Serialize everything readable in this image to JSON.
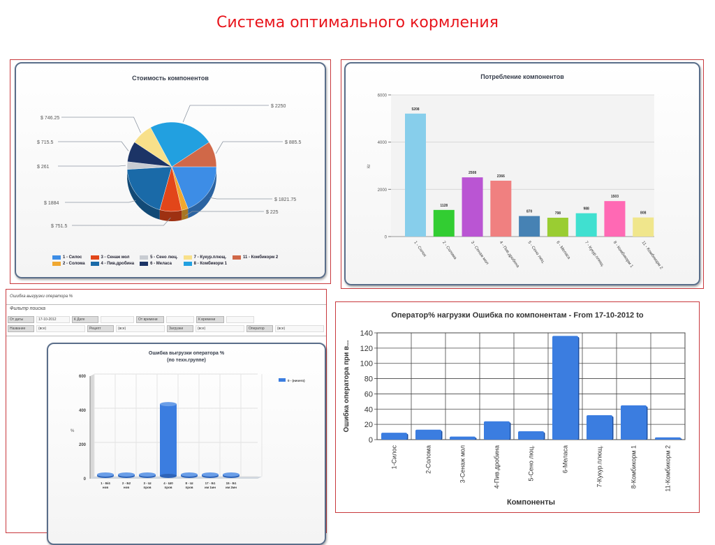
{
  "slide": {
    "title": "Система оптимального кормления"
  },
  "colors": {
    "title_red": "#e8141b",
    "frame_red": "#c8383c",
    "bar_blue": "#3b7de0"
  },
  "chart_data": [
    {
      "id": "cost",
      "type": "pie",
      "title": "Стоимость компонентов",
      "categories": [
        "1 - Силос",
        "2 - Солома",
        "3 - Сенаж мол",
        "4 - Пив.дробина",
        "5 - Сено люц.",
        "6 - Меласа",
        "7 - Кукур.плющ.",
        "8 - Комбикорм 1",
        "11 - Комбикорм 2"
      ],
      "values": [
        1821.75,
        225,
        751.5,
        1884,
        261,
        715.5,
        746.25,
        2250,
        885.5
      ],
      "labels": [
        "$ 1821.75",
        "$ 225",
        "$ 751.5",
        "$ 1884",
        "$ 261",
        "$ 715.5",
        "$ 746.25",
        "$ 2250",
        "$ 885.5"
      ],
      "colors": [
        "#3d8de6",
        "#f0a830",
        "#e2461a",
        "#1a6aa8",
        "#c8ccd2",
        "#1c3466",
        "#f8e08a",
        "#22a0e0",
        "#d06848"
      ],
      "legend_position": "bottom",
      "legend": [
        {
          "label": "1 - Силос",
          "color": "#3d8de6"
        },
        {
          "label": "3 - Сенаж мол",
          "color": "#e2461a"
        },
        {
          "label": "5 - Сено люц.",
          "color": "#c8ccd2"
        },
        {
          "label": "7 - Кукур.плющ.",
          "color": "#f8e08a"
        },
        {
          "label": "11 - Комбикорм 2",
          "color": "#d06848"
        },
        {
          "label": "2 - Солома",
          "color": "#f0a830"
        },
        {
          "label": "4 - Пив.дробина",
          "color": "#1a6aa8"
        },
        {
          "label": "6 - Меласа",
          "color": "#1c3466"
        },
        {
          "label": "8 - Комбикорм 1",
          "color": "#22a0e0"
        }
      ]
    },
    {
      "id": "consumption",
      "type": "bar",
      "title": "Потребление компонентов",
      "categories": [
        "1 - Силос",
        "2 - Солома",
        "3 - Сенаж мол",
        "4 - Пив.дробина",
        "5 - Сено люц.",
        "6 - Меласа",
        "7 - Кукур.плющ.",
        "8 - Комбикорм 1",
        "11 - Комбикорм 2"
      ],
      "values": [
        5208,
        1128,
        2508,
        2366,
        870,
        798,
        988,
        1503,
        808
      ],
      "value_labels": [
        "5208",
        "1128",
        "2508",
        "2366",
        "870",
        "798",
        "988",
        "1503",
        "808"
      ],
      "colors": [
        "#87ceeb",
        "#32cd32",
        "#ba55d3",
        "#f08080",
        "#4682b4",
        "#9acd32",
        "#40e0d0",
        "#ff69b4",
        "#f0e68c"
      ],
      "xlabel": "",
      "ylabel": "Кг",
      "ylim": [
        0,
        6000
      ],
      "yticks": [
        "0",
        "2000",
        "4000",
        "6000"
      ],
      "grid": true
    },
    {
      "id": "operator_error_group",
      "type": "bar",
      "title": "Ошибка выгрузки оператора %",
      "subtitle": "(по техн.группе)",
      "categories": [
        "1 - Б/4 нов",
        "2 - Б2 нов",
        "3 - Ш пров",
        "4 - Ш0 пров",
        "8 - Ш пров",
        "17 - Б1 им 1мн",
        "15 - Б1 им 2мн"
      ],
      "values": [
        5,
        3,
        5,
        420,
        2,
        1,
        8
      ],
      "series": [
        {
          "name": "0 - (ничего)",
          "color": "#3b7de0"
        }
      ],
      "ylabel": "%",
      "ylim": [
        0,
        600
      ],
      "yticks": [
        "0",
        "200",
        "400",
        "600"
      ],
      "legend_position": "right",
      "grid": true
    },
    {
      "id": "operator_error_component",
      "type": "bar",
      "title": "Оператор% нагрузки Ошибка по компонентам - From 17-10-2012 to",
      "categories": [
        "1-Силос",
        "2-Солома",
        "3-Сенаж мол",
        "4-Пив.дробина",
        "5-Сено люц.",
        "6-Меласа",
        "7-Кукур.плющ.",
        "8-Комбикорм 1",
        "11-Комбикорм 2"
      ],
      "values": [
        9,
        13,
        4,
        24,
        11,
        136,
        32,
        45,
        3
      ],
      "xlabel": "Компоненты",
      "ylabel": "Ошибка оператора при в...",
      "ylim": [
        0,
        140
      ],
      "yticks": [
        "0",
        "20",
        "40",
        "60",
        "80",
        "100",
        "120",
        "140"
      ],
      "grid": true,
      "color": "#3b7de0"
    }
  ],
  "form": {
    "header": "Ошибка выгрузки оператора %",
    "filter_title": "Фильтр поиска",
    "row1": [
      {
        "label": "От даты",
        "value": "17-10-2012"
      },
      {
        "label": "К Дате",
        "value": ""
      },
      {
        "label": "От времени",
        "value": ""
      },
      {
        "label": "К времени",
        "value": ""
      }
    ],
    "row2": [
      {
        "label": "Название",
        "value": "(все)"
      },
      {
        "label": "Рецепт",
        "value": "(все)"
      },
      {
        "label": "Загрузки",
        "value": "(все)"
      },
      {
        "label": "Оператор",
        "value": "(все)"
      }
    ]
  }
}
